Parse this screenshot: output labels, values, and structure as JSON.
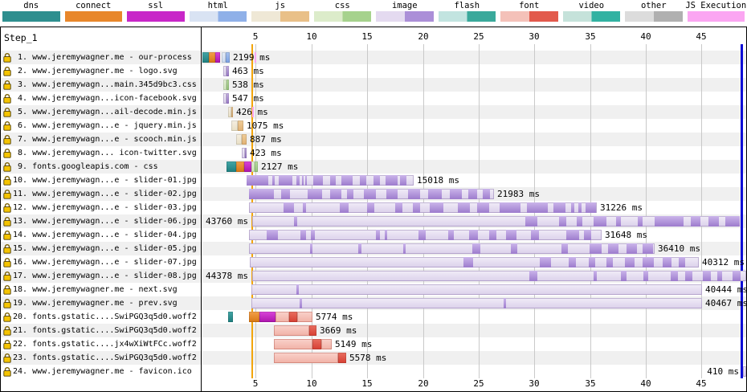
{
  "legend": {
    "items": [
      {
        "id": "dns",
        "label": "dns",
        "colors": [
          "#2e8f8f"
        ]
      },
      {
        "id": "connect",
        "label": "connect",
        "colors": [
          "#e8872b"
        ]
      },
      {
        "id": "ssl",
        "label": "ssl",
        "colors": [
          "#c827c8"
        ]
      },
      {
        "id": "html",
        "label": "html",
        "colors": [
          "#d9e3f3",
          "#8fb0e8"
        ]
      },
      {
        "id": "js",
        "label": "js",
        "colors": [
          "#efe8d6",
          "#e9c088"
        ]
      },
      {
        "id": "css",
        "label": "css",
        "colors": [
          "#dcecca",
          "#a6d28d"
        ]
      },
      {
        "id": "image",
        "label": "image",
        "colors": [
          "#e4daf0",
          "#ab8fd8"
        ]
      },
      {
        "id": "flash",
        "label": "flash",
        "colors": [
          "#c2e4e0",
          "#3aa99b"
        ]
      },
      {
        "id": "font",
        "label": "font",
        "colors": [
          "#f4c1b9",
          "#e25a4c"
        ]
      },
      {
        "id": "video",
        "label": "video",
        "colors": [
          "#c5e2da",
          "#32b2a2"
        ]
      },
      {
        "id": "other",
        "label": "other",
        "colors": [
          "#dcdcdc",
          "#b0b0b0"
        ]
      },
      {
        "id": "js-execution",
        "label": "JS Execution",
        "colors": [
          "#fba6f2"
        ]
      }
    ]
  },
  "table": {
    "step_label": "Step_1"
  },
  "axis": {
    "ticks": [
      5,
      10,
      15,
      20,
      25,
      30,
      35,
      40,
      45
    ]
  },
  "colors": {
    "row_band_odd": "#f0f0f0",
    "gridline": "#c9c9c9",
    "event_line_yellow": "#f2a50c",
    "event_line_blue": "#0b0bd6",
    "js_execution_tick": "#fba6f2",
    "lock_gold": "#f5c400"
  },
  "chart_data": {
    "type": "waterfall",
    "title": "Step_1",
    "time_unit": "seconds",
    "x_range": [
      0,
      49
    ],
    "grid": true,
    "event_lines": [
      {
        "name": "event-line-yellow",
        "time_s": 4.61,
        "color": "#f2a50c",
        "width": 2
      },
      {
        "name": "document-complete-line",
        "time_s": 48.5,
        "color": "#0b0bd6",
        "width": 3
      }
    ],
    "rows": [
      {
        "n": 1,
        "url": "www.jeremywagner.me - our-process",
        "duration_ms": 2199,
        "label": "2199 ms",
        "label_side": "right",
        "segments": [
          [
            "dns",
            0.22,
            0.79
          ],
          [
            "connect",
            0.79,
            1.37
          ],
          [
            "ssl",
            1.37,
            1.8
          ],
          [
            "html",
            1.95,
            2.3
          ],
          [
            "htmlc",
            2.3,
            2.67
          ]
        ],
        "ticks": [
          4.9
        ]
      },
      {
        "n": 2,
        "url": "www.jeremywagner.me - logo.svg",
        "duration_ms": 463,
        "label": "463 ms",
        "label_side": "right",
        "segments": [
          [
            "img",
            2.09,
            2.38
          ],
          [
            "imgc",
            2.38,
            2.59
          ]
        ]
      },
      {
        "n": 3,
        "url": "www.jeremywagn...main.345d9bc3.css",
        "duration_ms": 538,
        "label": "538 ms",
        "label_side": "right",
        "segments": [
          [
            "css",
            2.09,
            2.38
          ],
          [
            "cssc",
            2.38,
            2.59
          ]
        ]
      },
      {
        "n": 4,
        "url": "www.jeremywagn...icon-facebook.svg",
        "duration_ms": 547,
        "label": "547 ms",
        "label_side": "right",
        "segments": [
          [
            "img",
            2.09,
            2.38
          ],
          [
            "imgc",
            2.38,
            2.59
          ]
        ]
      },
      {
        "n": 5,
        "url": "www.jeremywagn...ail-decode.min.js",
        "duration_ms": 426,
        "label": "426 ms",
        "label_side": "right",
        "segments": [
          [
            "js",
            2.52,
            2.81
          ],
          [
            "jsc",
            2.81,
            2.95
          ]
        ],
        "ticks": [
          4.68
        ]
      },
      {
        "n": 6,
        "url": "www.jeremywagn...e - jquery.min.js",
        "duration_ms": 1075,
        "label": "1075 ms",
        "label_side": "right",
        "segments": [
          [
            "js",
            2.81,
            3.39
          ],
          [
            "jsc",
            3.39,
            3.89
          ]
        ]
      },
      {
        "n": 7,
        "url": "www.jeremywagn...e - scooch.min.js",
        "duration_ms": 887,
        "label": "887 ms",
        "label_side": "right",
        "segments": [
          [
            "js",
            3.24,
            3.75
          ],
          [
            "jsc",
            3.75,
            4.18
          ]
        ]
      },
      {
        "n": 8,
        "url": "www.jeremywagn... icon-twitter.svg",
        "duration_ms": 423,
        "label": "423 ms",
        "label_side": "right",
        "segments": [
          [
            "img",
            3.75,
            4.04
          ],
          [
            "imgc",
            4.04,
            4.18
          ]
        ]
      },
      {
        "n": 9,
        "url": "fonts.googleapis.com - css",
        "duration_ms": 2127,
        "label": "2127 ms",
        "label_side": "right",
        "segments": [
          [
            "dns",
            2.38,
            3.24
          ],
          [
            "connect",
            3.24,
            3.96
          ],
          [
            "ssl",
            3.96,
            4.61
          ],
          [
            "css",
            4.61,
            4.9
          ],
          [
            "cssc",
            4.9,
            5.19
          ]
        ]
      },
      {
        "n": 10,
        "url": "www.jeremywagn...e - slider-01.jpg",
        "duration_ms": 15018,
        "label": "15018 ms",
        "label_side": "right",
        "segments": [
          [
            "img",
            4.18,
            19.2
          ]
        ],
        "chunks": [
          [
            0,
            0.13
          ],
          [
            0.155,
            0.168
          ],
          [
            0.19,
            0.27
          ],
          [
            0.3,
            0.318
          ],
          [
            0.33,
            0.34
          ],
          [
            0.352,
            0.36
          ],
          [
            0.4,
            0.46
          ],
          [
            0.5,
            0.535
          ],
          [
            0.565,
            0.63
          ],
          [
            0.68,
            0.72
          ],
          [
            0.76,
            0.8
          ],
          [
            0.83,
            0.9
          ],
          [
            0.92,
            0.96
          ]
        ]
      },
      {
        "n": 11,
        "url": "www.jeremywagn...e - slider-02.jpg",
        "duration_ms": 21983,
        "label": "21983 ms",
        "label_side": "right",
        "segments": [
          [
            "img",
            4.4,
            26.38
          ]
        ],
        "chunks": [
          [
            0,
            0.1
          ],
          [
            0.13,
            0.165
          ],
          [
            0.24,
            0.3
          ],
          [
            0.33,
            0.375
          ],
          [
            0.4,
            0.425
          ],
          [
            0.47,
            0.52
          ],
          [
            0.56,
            0.605
          ],
          [
            0.65,
            0.7
          ],
          [
            0.73,
            0.785
          ],
          [
            0.82,
            0.87
          ],
          [
            0.895,
            0.93
          ],
          [
            0.955,
            0.985
          ]
        ]
      },
      {
        "n": 12,
        "url": "www.jeremywagn...e - slider-03.jpg",
        "duration_ms": 31226,
        "label": "31226 ms",
        "label_side": "right",
        "segments": [
          [
            "img",
            4.4,
            35.63
          ]
        ],
        "chunks": [
          [
            0.1,
            0.13
          ],
          [
            0.155,
            0.165
          ],
          [
            0.26,
            0.285
          ],
          [
            0.34,
            0.36
          ],
          [
            0.42,
            0.44
          ],
          [
            0.47,
            0.49
          ],
          [
            0.52,
            0.56
          ],
          [
            0.6,
            0.635
          ],
          [
            0.655,
            0.69
          ],
          [
            0.72,
            0.78
          ],
          [
            0.8,
            0.86
          ],
          [
            0.875,
            0.91
          ],
          [
            0.925,
            0.935
          ],
          [
            0.947,
            0.957
          ],
          [
            0.968,
            0.998
          ]
        ]
      },
      {
        "n": 13,
        "url": "www.jeremywagn...e - slider-06.jpg",
        "duration_ms": 43760,
        "label": "43760 ms",
        "label_side": "left",
        "segments": [
          [
            "img",
            4.68,
            48.44
          ]
        ],
        "chunks": [
          [
            0.085,
            0.092
          ],
          [
            0.56,
            0.585
          ],
          [
            0.63,
            0.645
          ],
          [
            0.665,
            0.676
          ],
          [
            0.7,
            0.726
          ],
          [
            0.746,
            0.756
          ],
          [
            0.79,
            0.8
          ],
          [
            0.825,
            0.885
          ],
          [
            0.9,
            0.92
          ],
          [
            0.935,
            0.956
          ],
          [
            0.97,
            1
          ]
        ]
      },
      {
        "n": 14,
        "url": "www.jeremywagn...e - slider-04.jpg",
        "duration_ms": 31648,
        "label": "31648 ms",
        "label_side": "right",
        "segments": [
          [
            "img",
            4.4,
            36.05
          ]
        ],
        "chunks": [
          [
            0.05,
            0.082
          ],
          [
            0.145,
            0.16
          ],
          [
            0.175,
            0.186
          ],
          [
            0.36,
            0.372
          ],
          [
            0.385,
            0.392
          ],
          [
            0.48,
            0.5
          ],
          [
            0.565,
            0.582
          ],
          [
            0.625,
            0.65
          ],
          [
            0.68,
            0.7
          ],
          [
            0.73,
            0.76
          ],
          [
            0.8,
            0.822
          ],
          [
            0.9,
            0.936
          ],
          [
            0.95,
            0.97
          ]
        ]
      },
      {
        "n": 15,
        "url": "www.jeremywagn...e - slider-05.jpg",
        "duration_ms": 36410,
        "label": "36410 ms",
        "label_side": "right",
        "segments": [
          [
            "img",
            4.4,
            40.81
          ]
        ],
        "chunks": [
          [
            0.15,
            0.156
          ],
          [
            0.27,
            0.277
          ],
          [
            0.38,
            0.386
          ],
          [
            0.55,
            0.57
          ],
          [
            0.645,
            0.66
          ],
          [
            0.77,
            0.786
          ],
          [
            0.84,
            0.87
          ],
          [
            0.885,
            0.91
          ],
          [
            0.93,
            0.956
          ],
          [
            0.97,
            0.995
          ]
        ]
      },
      {
        "n": 16,
        "url": "www.jeremywagn...e - slider-07.jpg",
        "duration_ms": 40312,
        "label": "40312 ms",
        "label_side": "right",
        "segments": [
          [
            "img",
            4.47,
            44.78
          ]
        ],
        "chunks": [
          [
            0.475,
            0.496
          ],
          [
            0.645,
            0.67
          ],
          [
            0.71,
            0.726
          ],
          [
            0.755,
            0.77
          ],
          [
            0.795,
            0.81
          ],
          [
            0.835,
            0.856
          ],
          [
            0.875,
            0.9
          ],
          [
            0.92,
            0.94
          ],
          [
            0.955,
            0.97
          ]
        ]
      },
      {
        "n": 17,
        "url": "www.jeremywagn...e - slider-08.jpg",
        "duration_ms": 44378,
        "label": "44378 ms",
        "label_side": "left",
        "segments": [
          [
            "img",
            4.68,
            49.06
          ]
        ],
        "chunks": [
          [
            0.56,
            0.576
          ],
          [
            0.69,
            0.697
          ],
          [
            0.745,
            0.756
          ],
          [
            0.79,
            0.8
          ],
          [
            0.845,
            0.86
          ],
          [
            0.875,
            0.89
          ],
          [
            0.91,
            0.926
          ],
          [
            0.94,
            0.95
          ],
          [
            0.97,
            0.986
          ]
        ]
      },
      {
        "n": 18,
        "url": "www.jeremywagner.me - next.svg",
        "duration_ms": 40444,
        "label": "40444 ms",
        "label_side": "right",
        "segments": [
          [
            "img",
            4.61,
            45.05
          ]
        ],
        "chunks": [
          [
            0.1,
            0.106
          ]
        ]
      },
      {
        "n": 19,
        "url": "www.jeremywagner.me - prev.svg",
        "duration_ms": 40467,
        "label": "40467 ms",
        "label_side": "right",
        "segments": [
          [
            "img",
            4.61,
            45.08
          ]
        ],
        "chunks": [
          [
            0.107,
            0.113
          ],
          [
            0.56,
            0.566
          ]
        ]
      },
      {
        "n": 20,
        "url": "fonts.gstatic....SwiPGQ3q5d0.woff2",
        "duration_ms": 5774,
        "label": "5774 ms",
        "label_side": "right",
        "segments": [
          [
            "dns",
            2.52,
            2.95
          ],
          [
            "connect",
            4.4,
            5.33
          ],
          [
            "ssl",
            5.33,
            6.77
          ],
          [
            "font",
            6.77,
            8.0
          ],
          [
            "fontc",
            8.0,
            8.72
          ],
          [
            "font",
            8.72,
            10.09
          ]
        ]
      },
      {
        "n": 21,
        "url": "fonts.gstatic....SwiPGQ3q5d0.woff2",
        "duration_ms": 3669,
        "label": "3669 ms",
        "label_side": "right",
        "segments": [
          [
            "font",
            6.63,
            9.8
          ],
          [
            "fontc",
            9.8,
            10.45
          ]
        ]
      },
      {
        "n": 22,
        "url": "fonts.gstatic....jx4wXiWtFCc.woff2",
        "duration_ms": 5149,
        "label": "5149 ms",
        "label_side": "right",
        "segments": [
          [
            "font",
            6.63,
            10.09
          ],
          [
            "fontc",
            10.09,
            10.88
          ],
          [
            "font",
            10.88,
            11.82
          ]
        ]
      },
      {
        "n": 23,
        "url": "fonts.gstatic....SwiPGQ3q5d0.woff2",
        "duration_ms": 5578,
        "label": "5578 ms",
        "label_side": "right",
        "segments": [
          [
            "font",
            6.63,
            12.4
          ],
          [
            "fontc",
            12.4,
            13.12
          ]
        ]
      },
      {
        "n": 24,
        "url": "www.jeremywagner.me - favicon.ico",
        "duration_ms": 410,
        "label": "410 ms",
        "label_side": "left",
        "segments": [
          [
            "img",
            48.72,
            49.3
          ]
        ]
      }
    ]
  }
}
